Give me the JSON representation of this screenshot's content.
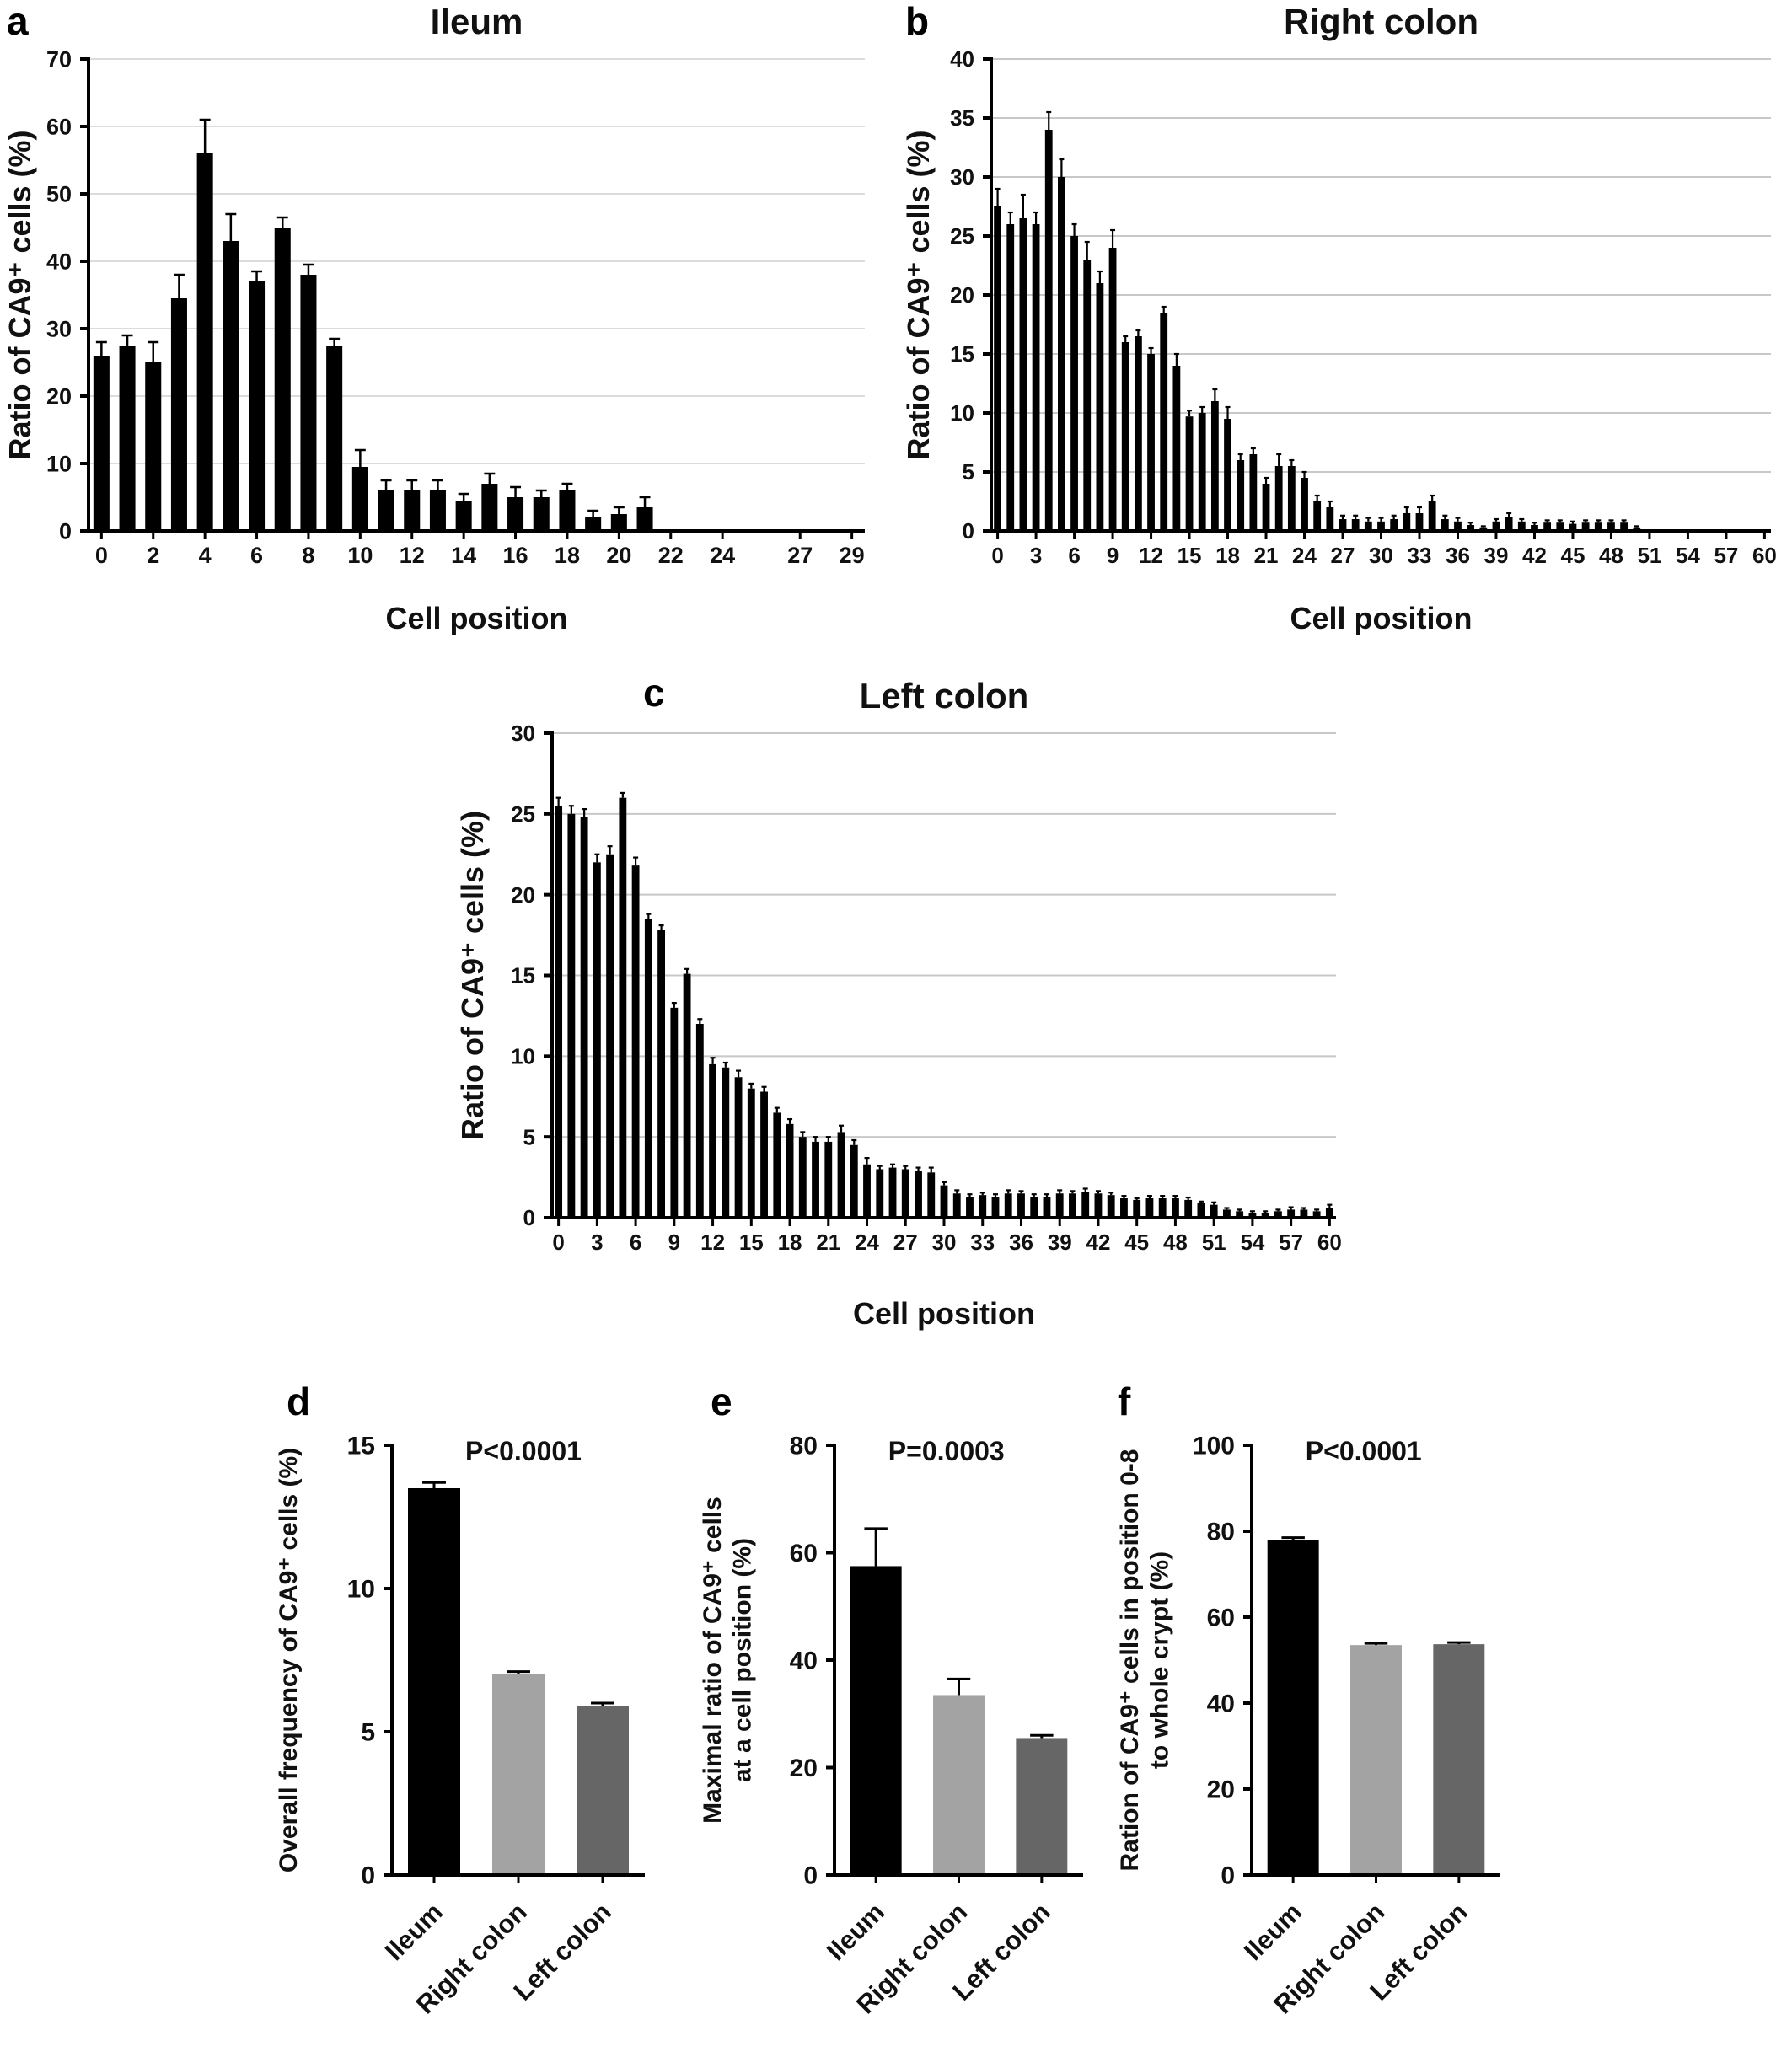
{
  "figure": {
    "background": "#ffffff",
    "bar_color_default": "#000000",
    "group_colors": {
      "ileum": "#000000",
      "right_colon": "#a3a3a3",
      "left_colon": "#666666"
    }
  },
  "chart_data": [
    {
      "type": "bar",
      "panel_label": "a",
      "title": "Ileum",
      "xlabel": "Cell position",
      "ylabel": "Ratio of CA9⁺ cells (%)",
      "ylim": [
        0,
        70
      ],
      "yticks": [
        0,
        10,
        20,
        30,
        40,
        50,
        60,
        70
      ],
      "xticks": [
        0,
        2,
        4,
        6,
        8,
        10,
        12,
        14,
        16,
        18,
        20,
        22,
        24,
        27,
        29
      ],
      "x_positions": "0-29",
      "values": [
        26,
        27.5,
        25,
        34.5,
        56,
        43,
        37,
        45,
        38,
        27.5,
        9.5,
        6,
        6,
        6,
        4.5,
        7,
        5,
        5,
        6,
        2,
        2.5,
        3.5,
        0,
        0,
        0,
        0,
        0,
        0,
        0,
        0
      ],
      "errors": [
        2,
        1.5,
        3,
        3.5,
        5,
        4,
        1.5,
        1.5,
        1.5,
        1,
        2.5,
        1.5,
        1.5,
        1.5,
        1,
        1.5,
        1.5,
        1,
        1,
        1,
        1,
        1.5,
        0,
        0,
        0,
        0,
        0,
        0,
        0,
        0
      ],
      "bar_color": "#000000"
    },
    {
      "type": "bar",
      "panel_label": "b",
      "title": "Right colon",
      "xlabel": "Cell position",
      "ylabel": "Ratio of CA9⁺ cells (%)",
      "ylim": [
        0,
        40
      ],
      "yticks": [
        0,
        5,
        10,
        15,
        20,
        25,
        30,
        35,
        40
      ],
      "xticks": [
        0,
        3,
        6,
        9,
        12,
        15,
        18,
        21,
        24,
        27,
        30,
        33,
        36,
        39,
        42,
        45,
        48,
        51,
        54,
        57,
        60
      ],
      "x_positions": "0-60",
      "values": [
        27.5,
        26,
        26.5,
        26,
        34,
        30,
        25,
        23,
        21,
        24,
        16,
        16.5,
        15,
        18.5,
        14,
        9.7,
        10,
        11,
        9.5,
        6,
        6.5,
        4,
        5.5,
        5.5,
        4.5,
        2.5,
        2,
        1,
        1,
        0.8,
        0.8,
        1,
        1.5,
        1.5,
        2.5,
        1,
        0.8,
        0.5,
        0.3,
        0.8,
        1.2,
        0.8,
        0.5,
        0.7,
        0.7,
        0.6,
        0.7,
        0.7,
        0.7,
        0.7,
        0.3,
        0,
        0,
        0,
        0,
        0,
        0,
        0,
        0,
        0,
        0
      ],
      "errors": [
        1.5,
        1,
        2,
        1,
        1.5,
        1.5,
        1,
        1.5,
        1,
        1.5,
        0.5,
        0.5,
        0.5,
        0.5,
        1,
        0.5,
        0.5,
        1,
        1,
        0.5,
        0.5,
        0.5,
        1,
        0.5,
        0.5,
        0.5,
        0.5,
        0.3,
        0.3,
        0.3,
        0.3,
        0.3,
        0.5,
        0.5,
        0.5,
        0.3,
        0.3,
        0.2,
        0.1,
        0.2,
        0.3,
        0.2,
        0.2,
        0.2,
        0.2,
        0.2,
        0.2,
        0.2,
        0.2,
        0.2,
        0.1,
        0,
        0,
        0,
        0,
        0,
        0,
        0,
        0,
        0,
        0
      ],
      "bar_color": "#000000"
    },
    {
      "type": "bar",
      "panel_label": "c",
      "title": "Left colon",
      "xlabel": "Cell position",
      "ylabel": "Ratio of CA9⁺ cells (%)",
      "ylim": [
        0,
        30
      ],
      "yticks": [
        0,
        5,
        10,
        15,
        20,
        25,
        30
      ],
      "xticks": [
        0,
        3,
        6,
        9,
        12,
        15,
        18,
        21,
        24,
        27,
        30,
        33,
        36,
        39,
        42,
        45,
        48,
        51,
        54,
        57,
        60
      ],
      "x_positions": "0-60",
      "values": [
        25.5,
        25,
        24.8,
        22,
        22.5,
        26,
        21.8,
        18.5,
        17.8,
        13,
        15.1,
        12,
        9.5,
        9.3,
        8.7,
        8,
        7.8,
        6.5,
        5.8,
        5,
        4.7,
        4.7,
        5.3,
        4.5,
        3.3,
        3,
        3.1,
        3,
        2.9,
        2.8,
        2,
        1.5,
        1.3,
        1.4,
        1.3,
        1.5,
        1.5,
        1.3,
        1.3,
        1.5,
        1.5,
        1.6,
        1.5,
        1.4,
        1.2,
        1.1,
        1.2,
        1.2,
        1.2,
        1.1,
        0.9,
        0.8,
        0.5,
        0.4,
        0.3,
        0.3,
        0.4,
        0.5,
        0.5,
        0.4,
        0.6
      ],
      "errors": [
        0.5,
        0.5,
        0.5,
        0.5,
        0.5,
        0.3,
        0.5,
        0.3,
        0.3,
        0.3,
        0.3,
        0.3,
        0.4,
        0.3,
        0.4,
        0.3,
        0.3,
        0.3,
        0.3,
        0.3,
        0.3,
        0.3,
        0.4,
        0.3,
        0.4,
        0.2,
        0.2,
        0.2,
        0.2,
        0.3,
        0.2,
        0.2,
        0.15,
        0.15,
        0.15,
        0.2,
        0.15,
        0.15,
        0.15,
        0.2,
        0.15,
        0.2,
        0.15,
        0.15,
        0.15,
        0.1,
        0.15,
        0.15,
        0.15,
        0.15,
        0.1,
        0.15,
        0.1,
        0.1,
        0.1,
        0.1,
        0.1,
        0.15,
        0.1,
        0.1,
        0.2
      ],
      "bar_color": "#000000"
    },
    {
      "type": "bar",
      "panel_label": "d",
      "annotation": "P<0.0001",
      "ylabel": "Overall frequency of CA9⁺ cells (%)",
      "ylim": [
        0,
        15
      ],
      "yticks": [
        0,
        5,
        10,
        15
      ],
      "categories": [
        "Ileum",
        "Right colon",
        "Left colon"
      ],
      "values": [
        13.5,
        7.0,
        5.9
      ],
      "errors": [
        0.2,
        0.1,
        0.1
      ],
      "bar_colors": [
        "#000000",
        "#a3a3a3",
        "#666666"
      ]
    },
    {
      "type": "bar",
      "panel_label": "e",
      "annotation": "P=0.0003",
      "ylabel": [
        "Maximal ratio of CA9⁺ cells",
        "at a cell position (%)"
      ],
      "ylim": [
        0,
        80
      ],
      "yticks": [
        0,
        20,
        40,
        60,
        80
      ],
      "categories": [
        "Ileum",
        "Right colon",
        "Left colon"
      ],
      "values": [
        57.5,
        33.5,
        25.5
      ],
      "errors": [
        7,
        3,
        0.5
      ],
      "bar_colors": [
        "#000000",
        "#a3a3a3",
        "#666666"
      ]
    },
    {
      "type": "bar",
      "panel_label": "f",
      "annotation": "P<0.0001",
      "ylabel": [
        "Ration of CA9⁺ cells in position 0-8",
        "to whole crypt (%)"
      ],
      "ylim": [
        0,
        100
      ],
      "yticks": [
        0,
        20,
        40,
        60,
        80,
        100
      ],
      "categories": [
        "Ileum",
        "Right colon",
        "Left colon"
      ],
      "values": [
        78,
        53.5,
        53.7
      ],
      "errors": [
        0.5,
        0.4,
        0.4
      ],
      "bar_colors": [
        "#000000",
        "#a3a3a3",
        "#666666"
      ]
    }
  ]
}
